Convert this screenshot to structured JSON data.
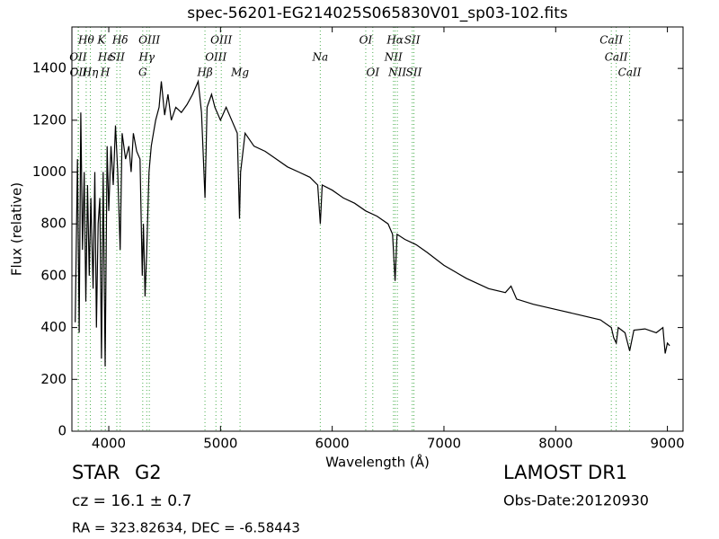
{
  "chart_data": {
    "type": "line",
    "title": "spec-56201-EG214025S065830V01_sp03-102.fits",
    "xlabel": "Wavelength (Å)",
    "ylabel": "Flux (relative)",
    "xlim": [
      3670,
      9140
    ],
    "ylim": [
      0,
      1560
    ],
    "xticks": [
      4000,
      5000,
      6000,
      7000,
      8000,
      9000
    ],
    "yticks": [
      0,
      200,
      400,
      600,
      800,
      1000,
      1200,
      1400
    ],
    "color": "#000000",
    "line_color": "#4caf50",
    "x": [
      3700,
      3720,
      3735,
      3750,
      3765,
      3780,
      3795,
      3810,
      3825,
      3840,
      3860,
      3875,
      3890,
      3905,
      3920,
      3935,
      3950,
      3968,
      3985,
      4000,
      4020,
      4040,
      4060,
      4080,
      4102,
      4120,
      4150,
      4180,
      4200,
      4220,
      4250,
      4280,
      4300,
      4310,
      4325,
      4340,
      4360,
      4380,
      4400,
      4420,
      4450,
      4470,
      4500,
      4530,
      4560,
      4600,
      4650,
      4700,
      4750,
      4800,
      4830,
      4861,
      4880,
      4920,
      4950,
      5000,
      5050,
      5100,
      5150,
      5170,
      5180,
      5220,
      5300,
      5400,
      5500,
      5600,
      5700,
      5800,
      5870,
      5893,
      5910,
      6000,
      6100,
      6200,
      6300,
      6400,
      6500,
      6540,
      6563,
      6580,
      6650,
      6750,
      6850,
      7000,
      7200,
      7400,
      7550,
      7600,
      7650,
      7800,
      8000,
      8200,
      8400,
      8498,
      8520,
      8542,
      8560,
      8620,
      8662,
      8700,
      8800,
      8900,
      8960,
      8980,
      9000,
      9020
    ],
    "values": [
      420,
      1050,
      380,
      1230,
      700,
      1000,
      500,
      950,
      600,
      900,
      550,
      1000,
      400,
      800,
      900,
      280,
      1000,
      250,
      1100,
      850,
      1100,
      950,
      1180,
      1000,
      700,
      1150,
      1050,
      1100,
      1000,
      1150,
      1080,
      1050,
      600,
      800,
      520,
      700,
      1000,
      1100,
      1150,
      1200,
      1250,
      1350,
      1220,
      1300,
      1200,
      1250,
      1230,
      1260,
      1300,
      1350,
      1230,
      900,
      1250,
      1300,
      1250,
      1200,
      1250,
      1200,
      1150,
      820,
      1000,
      1150,
      1100,
      1080,
      1050,
      1020,
      1000,
      980,
      950,
      800,
      950,
      930,
      900,
      880,
      850,
      830,
      800,
      760,
      580,
      760,
      740,
      720,
      690,
      640,
      590,
      550,
      535,
      560,
      510,
      490,
      470,
      450,
      430,
      400,
      360,
      340,
      400,
      380,
      310,
      390,
      395,
      380,
      400,
      300,
      340,
      330
    ],
    "lines": [
      {
        "wavelength": 3726,
        "label": "OII"
      },
      {
        "wavelength": 3729,
        "label": "OII"
      },
      {
        "wavelength": 3798,
        "label": "Hθ"
      },
      {
        "wavelength": 3835,
        "label": "Hη"
      },
      {
        "wavelength": 3934,
        "label": "K"
      },
      {
        "wavelength": 3970,
        "label": "Hε"
      },
      {
        "wavelength": 3969,
        "label": "H"
      },
      {
        "wavelength": 4072,
        "label": "SII"
      },
      {
        "wavelength": 4102,
        "label": "Hδ"
      },
      {
        "wavelength": 4304,
        "label": "G"
      },
      {
        "wavelength": 4340,
        "label": "Hγ"
      },
      {
        "wavelength": 4363,
        "label": "OIII"
      },
      {
        "wavelength": 4861,
        "label": "Hβ"
      },
      {
        "wavelength": 4959,
        "label": "OIII"
      },
      {
        "wavelength": 5007,
        "label": "OIII"
      },
      {
        "wavelength": 5175,
        "label": "Mg"
      },
      {
        "wavelength": 5893,
        "label": "Na"
      },
      {
        "wavelength": 6300,
        "label": "OI"
      },
      {
        "wavelength": 6363,
        "label": "OI"
      },
      {
        "wavelength": 6548,
        "label": "NII"
      },
      {
        "wavelength": 6563,
        "label": "Hα"
      },
      {
        "wavelength": 6583,
        "label": "NII"
      },
      {
        "wavelength": 6716,
        "label": "SII"
      },
      {
        "wavelength": 6731,
        "label": "SII"
      },
      {
        "wavelength": 8498,
        "label": "CaII"
      },
      {
        "wavelength": 8542,
        "label": "CaII"
      },
      {
        "wavelength": 8662,
        "label": "CaII"
      }
    ]
  },
  "footer": {
    "object_class": "STAR",
    "subclass": "G2",
    "redshift": "cz = 16.1  ± 0.7",
    "survey": "LAMOST DR1",
    "obs_date": "Obs-Date:20120930",
    "coords": "RA = 323.82634, DEC = -6.58443"
  }
}
